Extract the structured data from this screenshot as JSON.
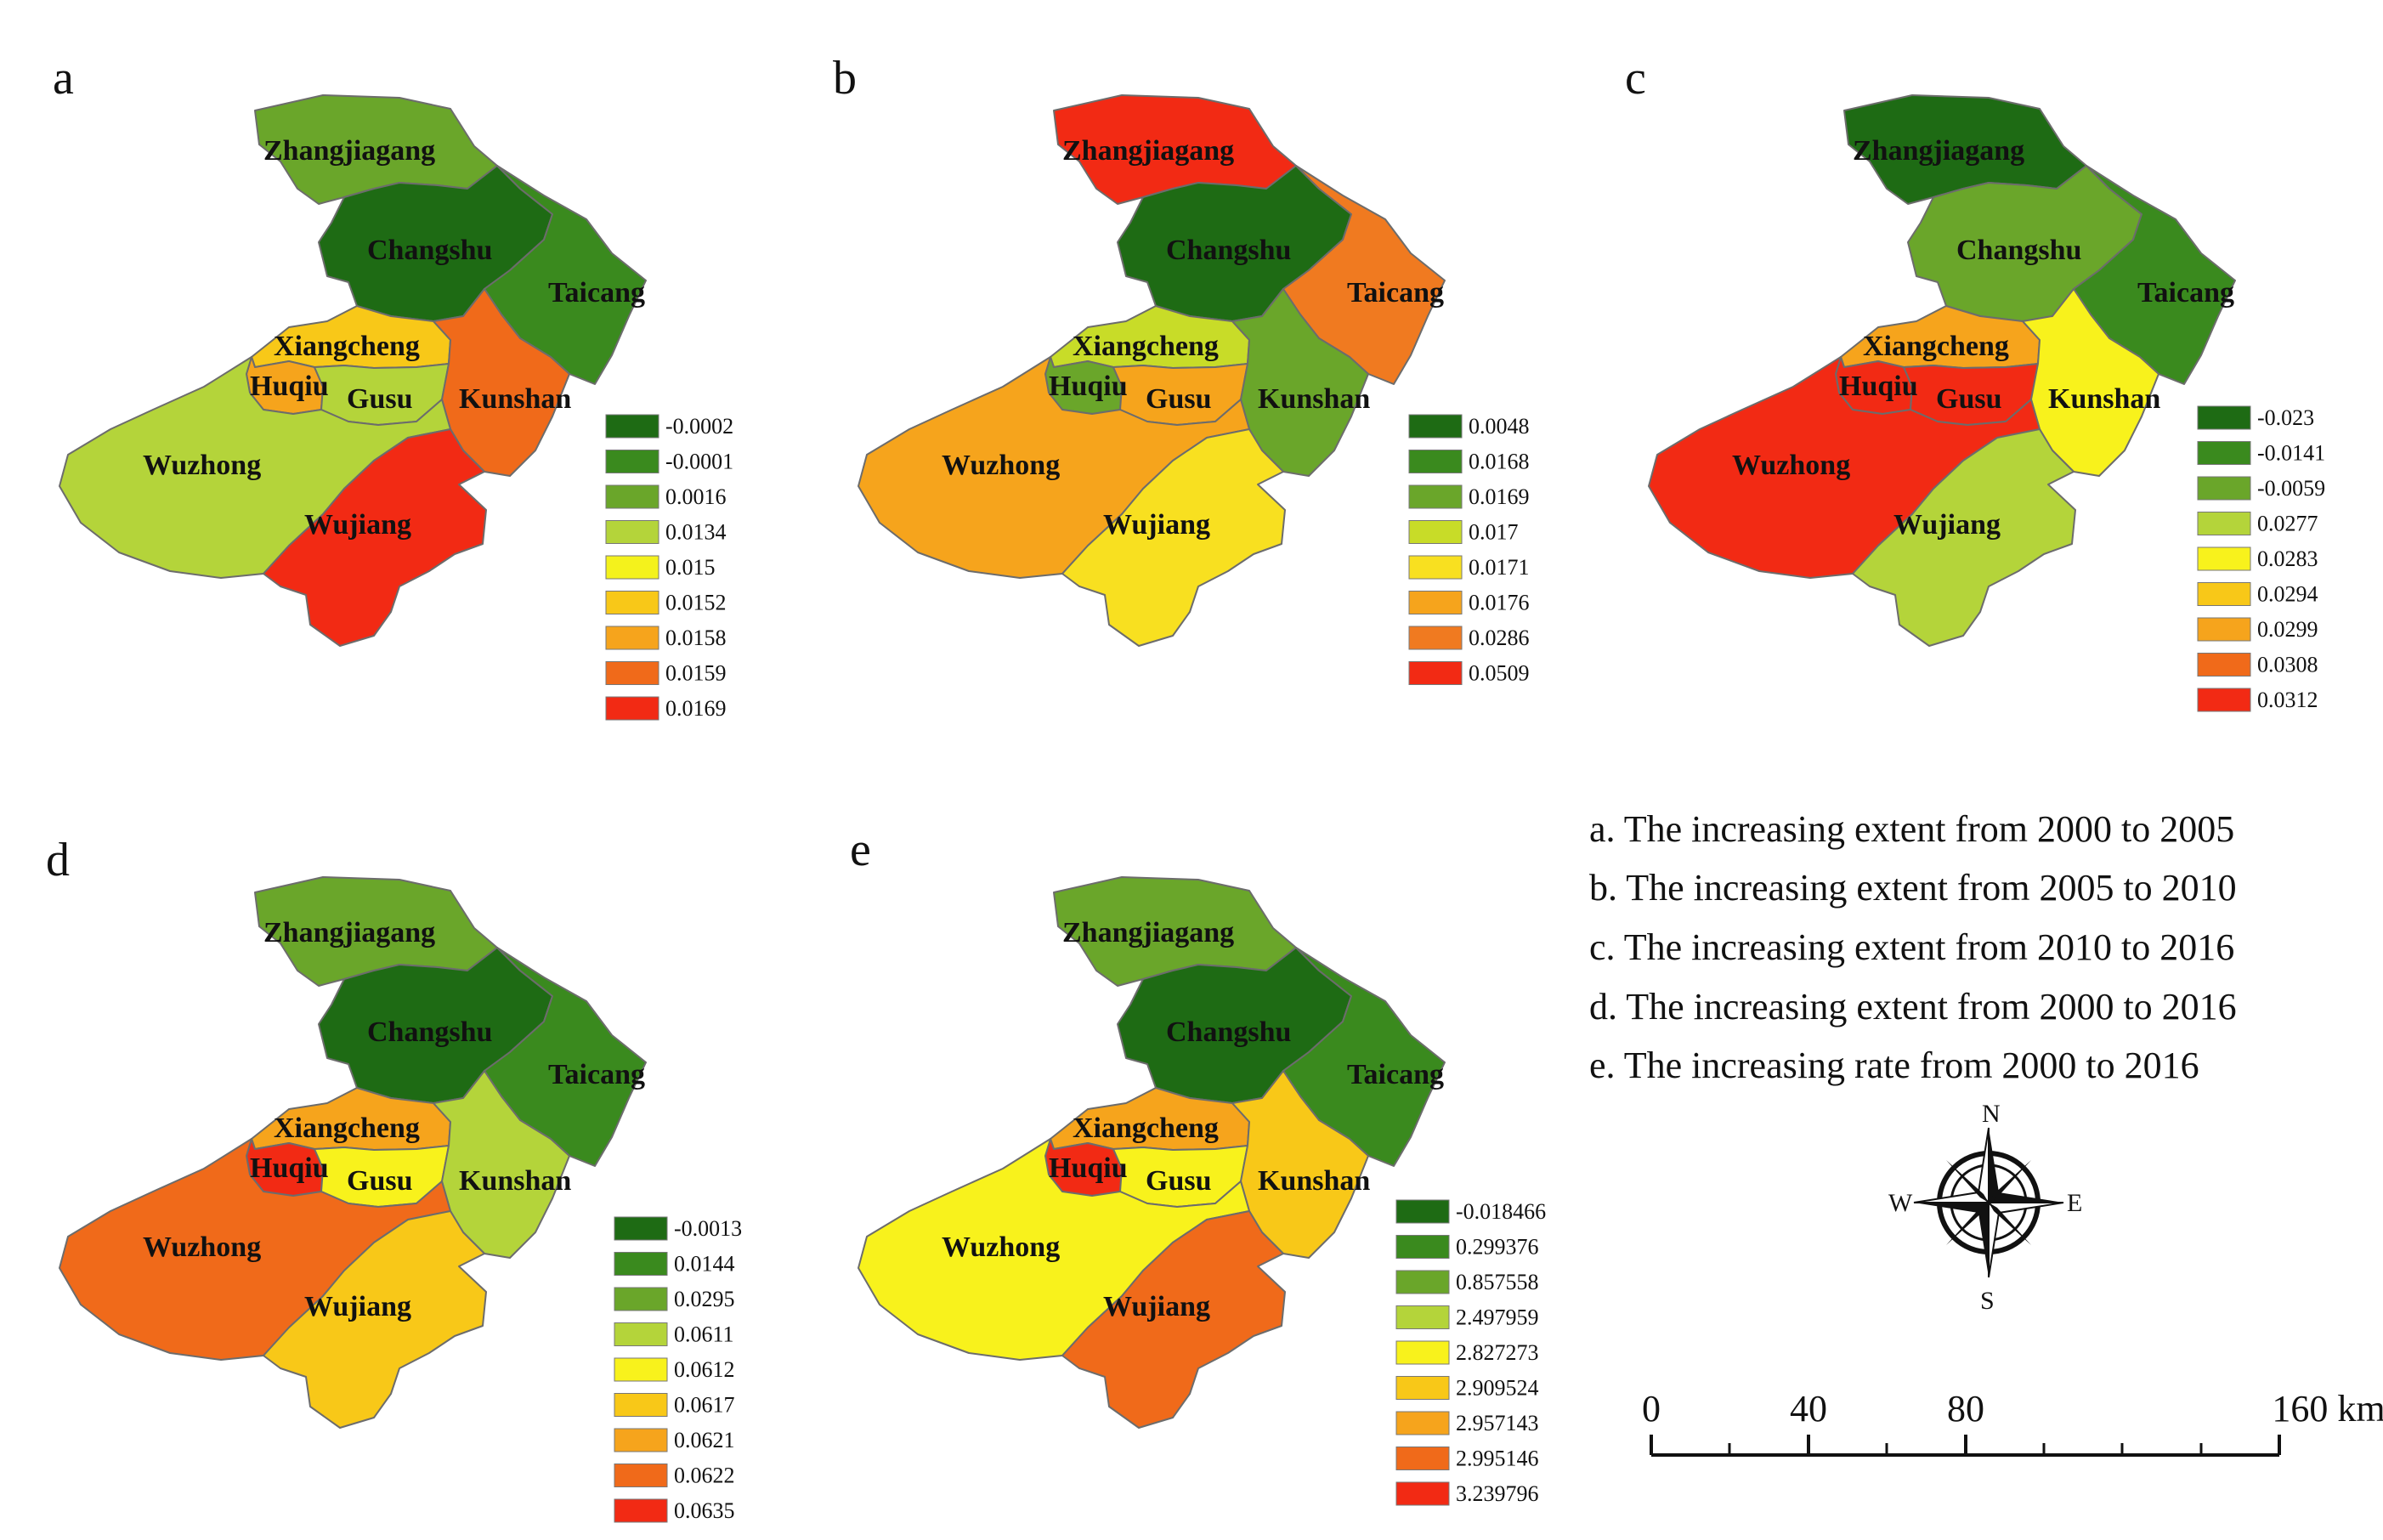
{
  "region_names": [
    "Zhangjiagang",
    "Changshu",
    "Taicang",
    "Xiangcheng",
    "Huqiu",
    "Gusu",
    "Kunshan",
    "Wuzhong",
    "Wujiang"
  ],
  "panels": [
    {
      "letter": "a",
      "caption": "a. The increasing extent from 2000 to 2005",
      "legend": [
        {
          "value": "-0.0002",
          "color": "#1e6b14"
        },
        {
          "value": "-0.0001",
          "color": "#3a8a1e"
        },
        {
          "value": "0.0016",
          "color": "#6aa62a"
        },
        {
          "value": "0.0134",
          "color": "#b4d43a"
        },
        {
          "value": "0.015",
          "color": "#f4f21c"
        },
        {
          "value": "0.0152",
          "color": "#f8c818"
        },
        {
          "value": "0.0158",
          "color": "#f6a41c"
        },
        {
          "value": "0.0159",
          "color": "#f06a1a"
        },
        {
          "value": "0.0169",
          "color": "#f22a14"
        }
      ],
      "fills": {
        "Zhangjiagang": "#6aa62a",
        "Changshu": "#1e6b14",
        "Taicang": "#3a8a1e",
        "Xiangcheng": "#f8c818",
        "Huqiu": "#f6a41c",
        "Gusu": "#b4d43a",
        "Kunshan": "#f06a1a",
        "Wuzhong": "#b4d43a",
        "Wujiang": "#f22a14"
      }
    },
    {
      "letter": "b",
      "caption": "b. The  increasing extent from 2005 to 2010",
      "legend": [
        {
          "value": "0.0048",
          "color": "#1e6b14"
        },
        {
          "value": "0.0168",
          "color": "#3a8a1e"
        },
        {
          "value": "0.0169",
          "color": "#6aa62a"
        },
        {
          "value": "0.017",
          "color": "#c8dc28"
        },
        {
          "value": "0.0171",
          "color": "#f8e020"
        },
        {
          "value": "0.0176",
          "color": "#f6a41c"
        },
        {
          "value": "0.0286",
          "color": "#f07a20"
        },
        {
          "value": "0.0509",
          "color": "#f22a14"
        }
      ],
      "fills": {
        "Zhangjiagang": "#f22a14",
        "Changshu": "#1e6b14",
        "Taicang": "#f07a20",
        "Xiangcheng": "#c8dc28",
        "Huqiu": "#6aa62a",
        "Gusu": "#f6a41c",
        "Kunshan": "#6aa62a",
        "Wuzhong": "#f6a41c",
        "Wujiang": "#f8e020"
      }
    },
    {
      "letter": "c",
      "caption": "c. The  increasing extent from 2010 to 2016",
      "legend": [
        {
          "value": "-0.023",
          "color": "#1e6b14"
        },
        {
          "value": "-0.0141",
          "color": "#3a8a1e"
        },
        {
          "value": "-0.0059",
          "color": "#6aa62a"
        },
        {
          "value": "0.0277",
          "color": "#b4d43a"
        },
        {
          "value": "0.0283",
          "color": "#f8f21c"
        },
        {
          "value": "0.0294",
          "color": "#f8c818"
        },
        {
          "value": "0.0299",
          "color": "#f6a41c"
        },
        {
          "value": "0.0308",
          "color": "#f06a1a"
        },
        {
          "value": "0.0312",
          "color": "#f22a14"
        }
      ],
      "fills": {
        "Zhangjiagang": "#1e6b14",
        "Changshu": "#6aa62a",
        "Taicang": "#3a8a1e",
        "Xiangcheng": "#f6a41c",
        "Huqiu": "#f22a14",
        "Gusu": "#f22a14",
        "Kunshan": "#f8f21c",
        "Wuzhong": "#f22a14",
        "Wujiang": "#b4d43a"
      }
    },
    {
      "letter": "d",
      "caption": "d. The  increasing extent from 2000 to 2016",
      "legend": [
        {
          "value": "-0.0013",
          "color": "#1e6b14"
        },
        {
          "value": "0.0144",
          "color": "#3a8a1e"
        },
        {
          "value": "0.0295",
          "color": "#6aa62a"
        },
        {
          "value": "0.0611",
          "color": "#b4d43a"
        },
        {
          "value": "0.0612",
          "color": "#f8f21c"
        },
        {
          "value": "0.0617",
          "color": "#f8c818"
        },
        {
          "value": "0.0621",
          "color": "#f6a41c"
        },
        {
          "value": "0.0622",
          "color": "#f06a1a"
        },
        {
          "value": "0.0635",
          "color": "#f22a14"
        }
      ],
      "fills": {
        "Zhangjiagang": "#6aa62a",
        "Changshu": "#1e6b14",
        "Taicang": "#3a8a1e",
        "Xiangcheng": "#f6a41c",
        "Huqiu": "#f22a14",
        "Gusu": "#f8f21c",
        "Kunshan": "#b4d43a",
        "Wuzhong": "#f06a1a",
        "Wujiang": "#f8c818"
      }
    },
    {
      "letter": "e",
      "caption": "e. The  increasing rate from 2000 to 2016",
      "legend": [
        {
          "value": "-0.018466",
          "color": "#1e6b14"
        },
        {
          "value": "0.299376",
          "color": "#3a8a1e"
        },
        {
          "value": "0.857558",
          "color": "#6aa62a"
        },
        {
          "value": "2.497959",
          "color": "#b4d43a"
        },
        {
          "value": "2.827273",
          "color": "#f8f21c"
        },
        {
          "value": "2.909524",
          "color": "#f8c818"
        },
        {
          "value": "2.957143",
          "color": "#f6a41c"
        },
        {
          "value": "2.995146",
          "color": "#f06a1a"
        },
        {
          "value": "3.239796",
          "color": "#f22a14"
        }
      ],
      "fills": {
        "Zhangjiagang": "#6aa62a",
        "Changshu": "#1e6b14",
        "Taicang": "#3a8a1e",
        "Xiangcheng": "#f6a41c",
        "Huqiu": "#f22a14",
        "Gusu": "#f8f21c",
        "Kunshan": "#f8c818",
        "Wuzhong": "#f8f21c",
        "Wujiang": "#f06a1a"
      }
    }
  ],
  "compass": {
    "n": "N",
    "s": "S",
    "e": "E",
    "w": "W"
  },
  "scale_bar": {
    "ticks": [
      "0",
      "40",
      "80",
      "160 km"
    ]
  }
}
